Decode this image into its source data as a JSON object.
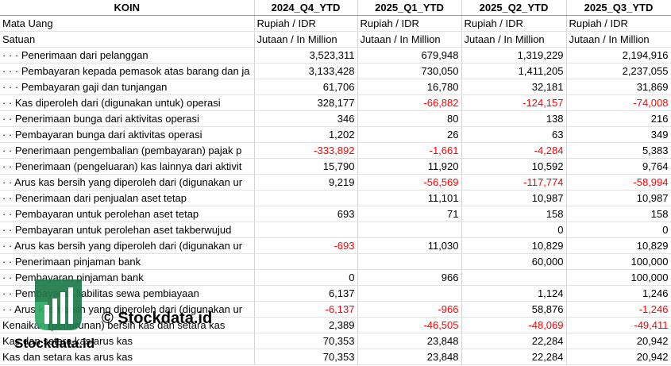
{
  "table": {
    "header": [
      "KOIN",
      "2024_Q4_YTD",
      "2025_Q1_YTD",
      "2025_Q2_YTD",
      "2025_Q3_YTD"
    ],
    "rows": [
      [
        "Mata Uang",
        "Rupiah / IDR",
        "Rupiah / IDR",
        "Rupiah / IDR",
        "Rupiah / IDR"
      ],
      [
        "Satuan",
        "Jutaan / In Million",
        "Jutaan / In Million",
        "Jutaan / In Million",
        "Jutaan / In Million"
      ],
      [
        "· · · Penerimaan dari pelanggan",
        "3,523,311",
        "679,948",
        "1,319,229",
        "2,194,916"
      ],
      [
        "· · · Pembayaran kepada pemasok atas barang dan ja",
        "3,133,428",
        "730,050",
        "1,411,205",
        "2,237,055"
      ],
      [
        "· · · Pembayaran gaji dan tunjangan",
        "61,706",
        "16,780",
        "32,181",
        "31,869"
      ],
      [
        "· · Kas diperoleh dari (digunakan untuk) operasi",
        "328,177",
        "-66,882",
        "-124,157",
        "-74,008"
      ],
      [
        "· · Penerimaan bunga dari aktivitas operasi",
        "346",
        "80",
        "138",
        "216"
      ],
      [
        "· · Pembayaran bunga dari aktivitas operasi",
        "1,202",
        "26",
        "63",
        "349"
      ],
      [
        "· · Penerimaan pengembalian (pembayaran) pajak p",
        "-333,892",
        "-1,661",
        "-4,284",
        "5,383"
      ],
      [
        "· · Penerimaan (pengeluaran) kas lainnya dari aktivit",
        "15,790",
        "11,920",
        "10,592",
        "9,764"
      ],
      [
        "· · Arus kas bersih yang diperoleh dari (digunakan ur",
        "9,219",
        "-56,569",
        "-117,774",
        "-58,994"
      ],
      [
        "· · Penerimaan dari penjualan aset tetap",
        null,
        "11,101",
        "10,987",
        "10,987"
      ],
      [
        "· · Pembayaran untuk perolehan aset tetap",
        "693",
        "71",
        "158",
        "158"
      ],
      [
        "· · Pembayaran untuk perolehan aset takberwujud",
        null,
        null,
        "0",
        "0"
      ],
      [
        "· · Arus kas bersih yang diperoleh dari (digunakan ur",
        "-693",
        "11,030",
        "10,829",
        "10,829"
      ],
      [
        "· · Penerimaan pinjaman bank",
        null,
        null,
        "60,000",
        "100,000"
      ],
      [
        "· · Pembayaran pinjaman bank",
        "0",
        "966",
        null,
        "100,000"
      ],
      [
        "· · Pembayaran liabilitas sewa pembiayaan",
        "6,137",
        null,
        "1,124",
        "1,246"
      ],
      [
        "· · Arus kas bersih yang diperoleh dari (digunakan ur",
        "-6,137",
        "-966",
        "58,876",
        "-1,246"
      ],
      [
        "Kenaikan (penurunan) bersih kas dan setara kas",
        "2,389",
        "-46,505",
        "-48,069",
        "-49,411"
      ],
      [
        "Kas dan setara kas arus kas",
        "70,353",
        "23,848",
        "22,284",
        "20,942"
      ],
      [
        "Kas dan setara kas arus kas",
        "70,353",
        "23,848",
        "22,284",
        "20,942"
      ]
    ],
    "negative_color": "#ff0000"
  },
  "watermark": {
    "text": "© Stockdata.id",
    "logo_text": "Stockdata.id"
  }
}
